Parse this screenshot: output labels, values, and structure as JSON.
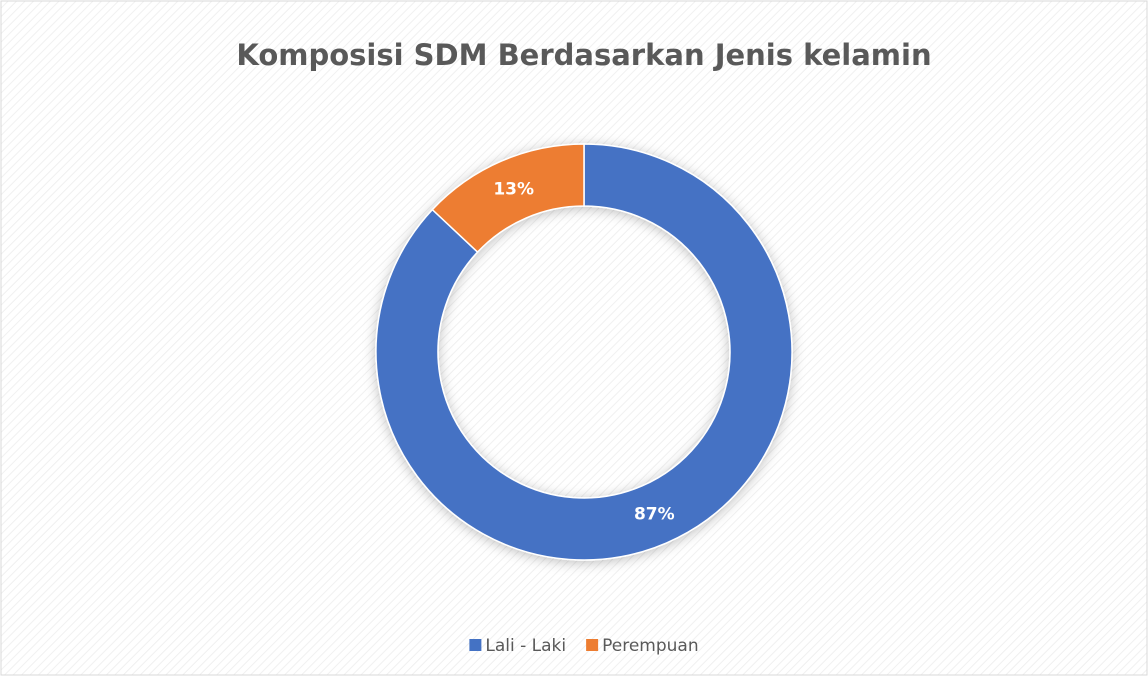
{
  "chart_data": {
    "type": "donut",
    "title": "Komposisi SDM Berdasarkan Jenis kelamin",
    "categories": [
      "Lali - Laki",
      "Perempuan"
    ],
    "values": [
      87,
      13
    ],
    "value_labels": [
      "87%",
      "13%"
    ],
    "colors": [
      "#4472c4",
      "#ed7d31"
    ],
    "legend": "bottom"
  }
}
